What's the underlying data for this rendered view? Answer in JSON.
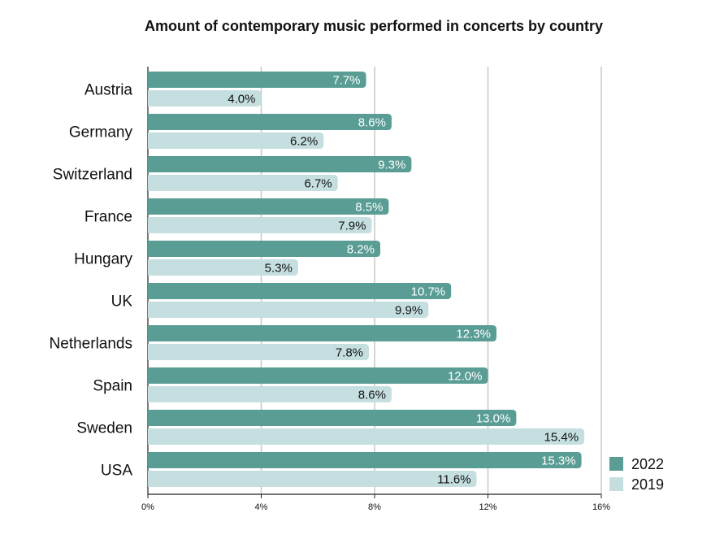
{
  "chart_data": {
    "type": "bar",
    "orientation": "horizontal",
    "title": "Amount of contemporary music performed in concerts by country",
    "categories": [
      "Austria",
      "Germany",
      "Switzerland",
      "France",
      "Hungary",
      "UK",
      "Netherlands",
      "Spain",
      "Sweden",
      "USA"
    ],
    "series": [
      {
        "name": "2022",
        "color": "#5a9d94",
        "values": [
          7.7,
          8.6,
          9.3,
          8.5,
          8.2,
          10.7,
          12.3,
          12.0,
          13.0,
          15.3
        ],
        "labels": [
          "7.7%",
          "8.6%",
          "9.3%",
          "8.5%",
          "8.2%",
          "10.7%",
          "12.3%",
          "12.0%",
          "13.0%",
          "15.3%"
        ]
      },
      {
        "name": "2019",
        "color": "#c5dfe0",
        "values": [
          4.0,
          6.2,
          6.7,
          7.9,
          5.3,
          9.9,
          7.8,
          8.6,
          15.4,
          11.6
        ],
        "labels": [
          "4.0%",
          "6.2%",
          "6.7%",
          "7.9%",
          "5.3%",
          "9.9%",
          "7.8%",
          "8.6%",
          "15.4%",
          "11.6%"
        ]
      }
    ],
    "x_ticks": [
      "0%",
      "4%",
      "8%",
      "12%",
      "16%"
    ],
    "xlim": [
      0,
      16
    ],
    "grid": true,
    "legend_position": "bottom-right"
  }
}
